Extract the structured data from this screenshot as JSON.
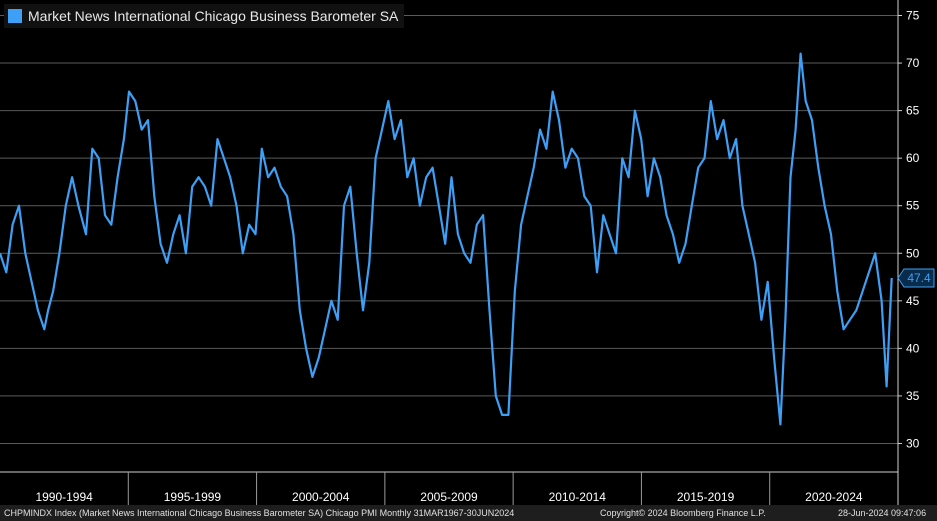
{
  "legend": {
    "title": "Market News International Chicago Business Barometer SA",
    "color": "#3d9ff5"
  },
  "last_value": {
    "label": "47.4",
    "value": 47.4,
    "color": "#3d9ff5"
  },
  "footer": {
    "left": "CHPMINDX Index (Market News International Chicago Business Barometer SA) Chicago PMI  Monthly 31MAR1967-30JUN2024",
    "center": "Copyright© 2024 Bloomberg Finance L.P.",
    "right": "28-Jun-2024 09:47:06"
  },
  "chart_data": {
    "type": "line",
    "title": "Market News International Chicago Business Barometer SA",
    "xlabel": "",
    "ylabel": "",
    "ylim": [
      27,
      76
    ],
    "yticks": [
      30,
      35,
      40,
      45,
      50,
      55,
      60,
      65,
      70,
      75
    ],
    "y_axis_side": "right",
    "x_range": [
      1989.2,
      2024.7
    ],
    "x_categories": [
      "1990-1994",
      "1995-1999",
      "2000-2004",
      "2005-2009",
      "2010-2014",
      "2015-2019",
      "2020-2024"
    ],
    "grid": true,
    "background": "#000000",
    "series": [
      {
        "name": "Market News International Chicago Business Barometer SA",
        "color": "#3d9ff5",
        "x": [
          1989.2,
          1989.45,
          1989.7,
          1989.95,
          1990.2,
          1990.45,
          1990.7,
          1990.95,
          1991.1,
          1991.3,
          1991.55,
          1991.8,
          1992.05,
          1992.3,
          1992.6,
          1992.85,
          1993.1,
          1993.35,
          1993.6,
          1993.85,
          1994.1,
          1994.3,
          1994.55,
          1994.8,
          1995.05,
          1995.3,
          1995.55,
          1995.8,
          1996.05,
          1996.3,
          1996.55,
          1996.8,
          1997.05,
          1997.3,
          1997.55,
          1997.8,
          1998.05,
          1998.3,
          1998.55,
          1998.8,
          1999.05,
          1999.3,
          1999.55,
          1999.8,
          2000.05,
          2000.3,
          2000.55,
          2000.8,
          2001.05,
          2001.3,
          2001.55,
          2001.8,
          2002.05,
          2002.3,
          2002.55,
          2002.8,
          2003.05,
          2003.3,
          2003.55,
          2003.8,
          2004.05,
          2004.3,
          2004.55,
          2004.8,
          2005.05,
          2005.3,
          2005.55,
          2005.8,
          2006.05,
          2006.3,
          2006.55,
          2006.8,
          2007.05,
          2007.3,
          2007.55,
          2007.8,
          2008.05,
          2008.3,
          2008.55,
          2008.8,
          2009.05,
          2009.3,
          2009.55,
          2009.8,
          2010.05,
          2010.3,
          2010.55,
          2010.8,
          2011.05,
          2011.3,
          2011.55,
          2011.8,
          2012.05,
          2012.3,
          2012.55,
          2012.8,
          2013.05,
          2013.3,
          2013.55,
          2013.8,
          2014.05,
          2014.3,
          2014.55,
          2014.8,
          2015.05,
          2015.3,
          2015.55,
          2015.8,
          2016.05,
          2016.3,
          2016.55,
          2016.8,
          2017.05,
          2017.3,
          2017.55,
          2017.8,
          2018.05,
          2018.3,
          2018.55,
          2018.8,
          2019.05,
          2019.3,
          2019.55,
          2019.8,
          2020.05,
          2020.25,
          2020.45,
          2020.65,
          2020.85,
          2021.05,
          2021.3,
          2021.55,
          2021.8,
          2022.05,
          2022.3,
          2022.55,
          2022.8,
          2023.05,
          2023.3,
          2023.55,
          2023.8,
          2024.05,
          2024.25,
          2024.45
        ],
        "y": [
          50,
          48,
          53,
          55,
          50,
          47,
          44,
          42,
          44,
          46,
          50,
          55,
          58,
          55,
          52,
          61,
          60,
          54,
          53,
          58,
          62,
          67,
          66,
          63,
          64,
          56,
          51,
          49,
          52,
          54,
          50,
          57,
          58,
          57,
          55,
          62,
          60,
          58,
          55,
          50,
          53,
          52,
          61,
          58,
          59,
          57,
          56,
          52,
          44,
          40,
          37,
          39,
          42,
          45,
          43,
          55,
          57,
          50,
          44,
          49,
          60,
          63,
          66,
          62,
          64,
          58,
          60,
          55,
          58,
          59,
          55,
          51,
          58,
          52,
          50,
          49,
          53,
          54,
          44,
          35,
          33,
          33,
          46,
          53,
          56,
          59,
          63,
          61,
          67,
          64,
          59,
          61,
          60,
          56,
          55,
          48,
          54,
          52,
          50,
          60,
          58,
          65,
          62,
          56,
          60,
          58,
          54,
          52,
          49,
          51,
          55,
          59,
          60,
          66,
          62,
          64,
          60,
          62,
          55,
          52,
          49,
          43,
          47,
          39,
          32,
          43,
          58,
          63,
          71,
          66,
          64,
          59,
          55,
          52,
          46,
          42,
          43,
          44,
          46,
          48,
          50,
          45,
          36,
          47.4
        ]
      }
    ]
  }
}
